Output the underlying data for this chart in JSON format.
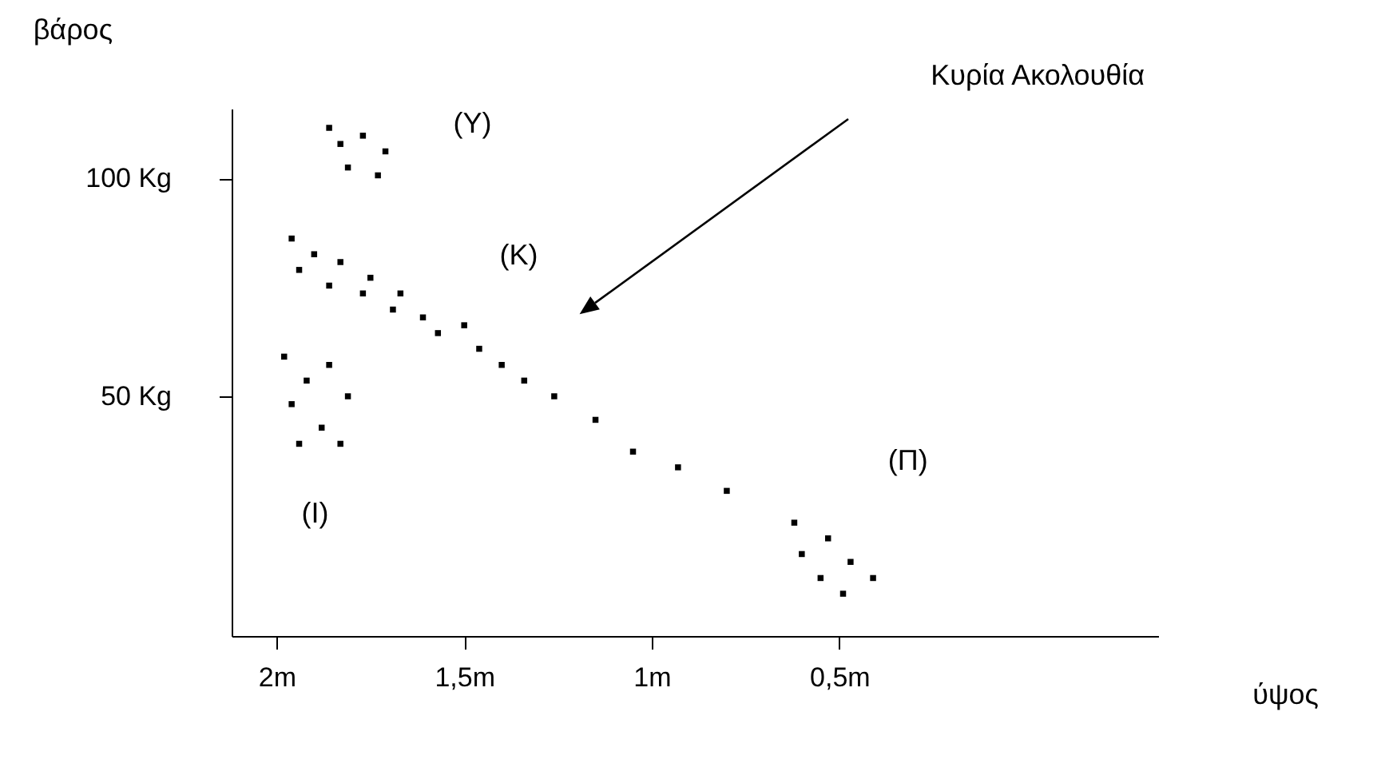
{
  "chart_data": {
    "type": "scatter",
    "xlabel": "ύψος",
    "ylabel": "βάρος",
    "xlim": [
      2.12,
      -0.35
    ],
    "ylim": [
      -5,
      116
    ],
    "xticks": [
      {
        "value": 2,
        "label": "2m"
      },
      {
        "value": 1.5,
        "label": "1,5m"
      },
      {
        "value": 1,
        "label": "1m"
      },
      {
        "value": 0.5,
        "label": "0,5m"
      }
    ],
    "yticks": [
      {
        "value": 50,
        "label": "50 Kg"
      },
      {
        "value": 100,
        "label": "100 Kg"
      }
    ],
    "grid": false,
    "marker": "square",
    "series": [
      {
        "color": "#000000",
        "x": [
          1.86,
          1.77,
          1.71,
          1.81,
          1.73,
          1.83,
          1.96,
          1.94,
          1.9,
          1.86,
          1.83,
          1.77,
          1.75,
          1.69,
          1.67,
          1.61,
          1.57,
          1.5,
          1.46,
          1.4,
          1.34,
          1.26,
          1.15,
          1.05,
          0.93,
          0.8,
          0.62,
          0.53,
          0.47,
          0.55,
          0.41,
          0.49,
          0.6,
          1.98,
          1.92,
          1.86,
          1.96,
          1.88,
          1.81,
          1.94,
          1.83
        ],
        "values": [
          111.6,
          109.8,
          106.2,
          102.5,
          100.7,
          107.9,
          86.2,
          79,
          82.6,
          75.4,
          80.8,
          73.6,
          77.2,
          69.9,
          73.6,
          68.1,
          64.5,
          66.3,
          60.9,
          57.2,
          53.6,
          50,
          44.6,
          37.3,
          33.7,
          28.3,
          21,
          17.4,
          12,
          8.3,
          8.3,
          4.7,
          13.8,
          59.1,
          53.6,
          57.2,
          48.2,
          42.8,
          50,
          39.1,
          39.1
        ]
      }
    ],
    "annotations": [
      "(Υ)",
      "(Κ)",
      "(Ι)",
      "(Π)",
      "Κυρία Ακολουθία"
    ]
  }
}
